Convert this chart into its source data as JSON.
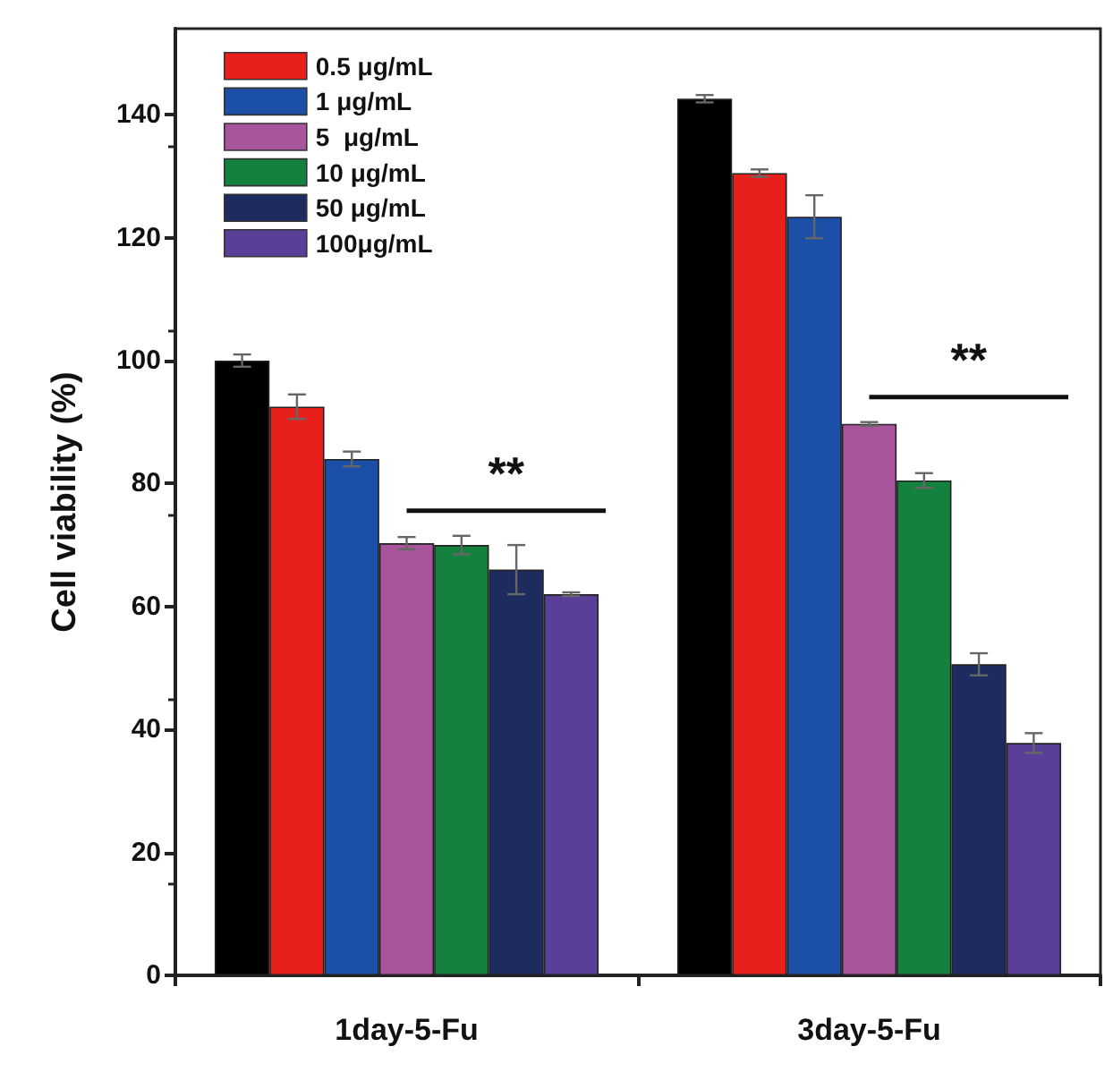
{
  "chart_data": {
    "type": "bar",
    "ylabel": "Cell viability (%)",
    "categories": [
      "1day-5-Fu",
      "3day-5-Fu"
    ],
    "series": [
      {
        "color": "#000000",
        "values": [
          100,
          142.6
        ],
        "errors": [
          1,
          0.6
        ]
      },
      {
        "name": "0.5 μg/mL",
        "color": "#e8201c",
        "values": [
          92.5,
          130.5
        ],
        "errors": [
          2,
          0.6
        ]
      },
      {
        "name": "1 μg/mL",
        "color": "#1b4fa8",
        "values": [
          84,
          123.4
        ],
        "errors": [
          1.2,
          3.5
        ]
      },
      {
        "name": "5  μg/mL",
        "color": "#a8559e",
        "values": [
          70.3,
          89.7
        ],
        "errors": [
          1,
          0.3
        ]
      },
      {
        "name": "10 μg/mL",
        "color": "#14813e",
        "values": [
          70,
          80.5
        ],
        "errors": [
          1.5,
          1.2
        ]
      },
      {
        "name": "50 μg/mL",
        "color": "#1e2b5e",
        "values": [
          66,
          50.6
        ],
        "errors": [
          4,
          1.8
        ]
      },
      {
        "name": "100μg/mL",
        "color": "#5a3f98",
        "values": [
          62,
          37.8
        ],
        "errors": [
          0.3,
          1.6
        ]
      }
    ],
    "ylim": [
      0,
      154
    ],
    "yticks": [
      0,
      20,
      40,
      60,
      80,
      100,
      120,
      140
    ],
    "legend": "top left",
    "grid": false,
    "annotations": [
      "**",
      "**"
    ]
  }
}
